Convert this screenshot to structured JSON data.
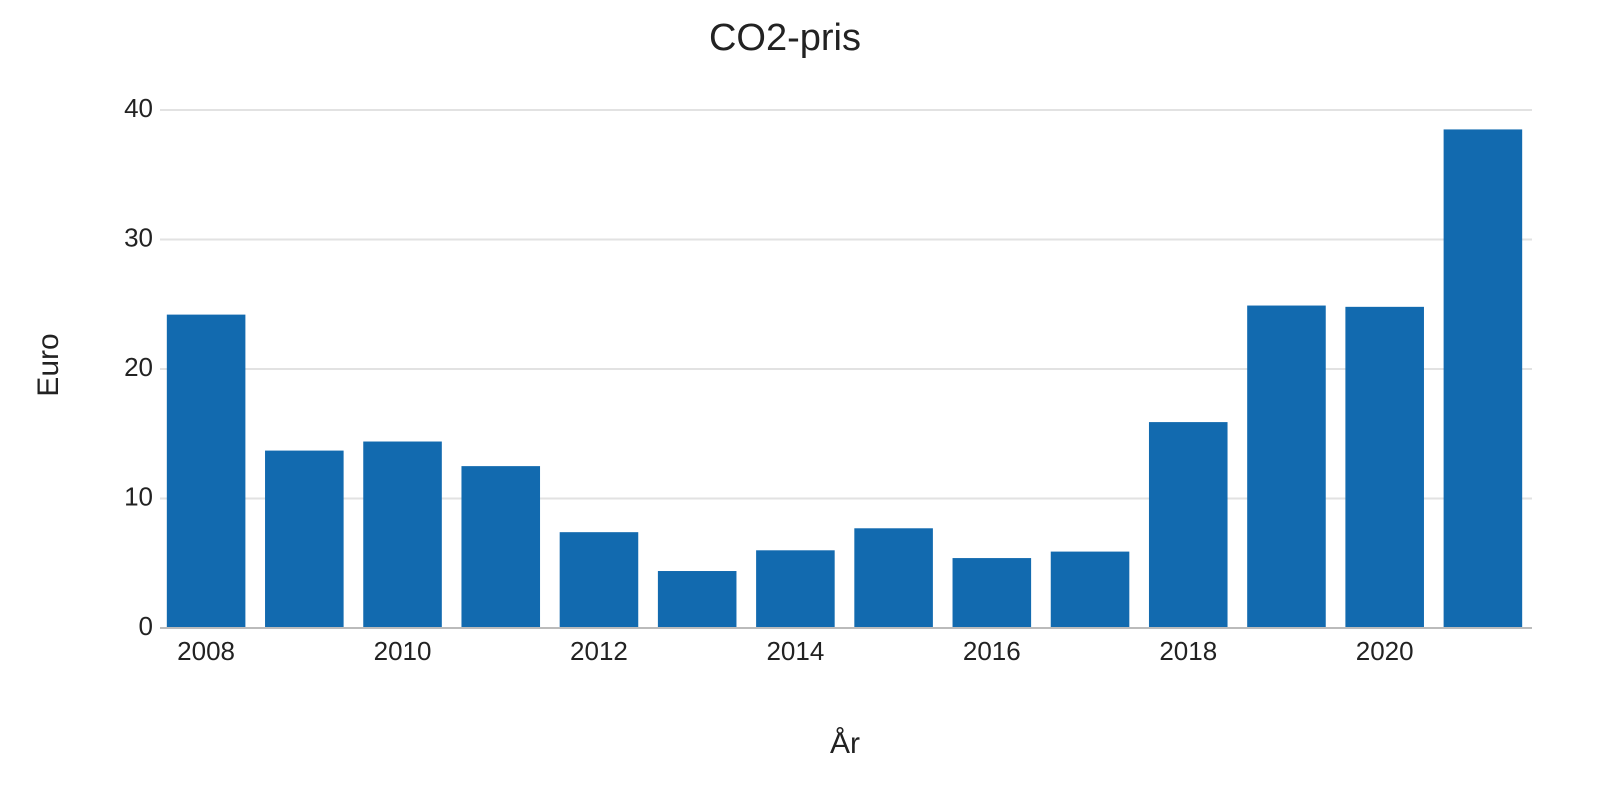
{
  "chart_data": {
    "type": "bar",
    "title": "CO2-pris",
    "x": [
      2008,
      2009,
      2010,
      2011,
      2012,
      2013,
      2014,
      2015,
      2016,
      2017,
      2018,
      2019,
      2020,
      2021
    ],
    "values": [
      24.2,
      13.7,
      14.4,
      12.5,
      7.4,
      4.4,
      6.0,
      7.7,
      5.4,
      5.9,
      15.9,
      24.9,
      24.8,
      38.5
    ],
    "color": "#126aaf",
    "xlim": [
      2007.5,
      2021.5
    ],
    "xticks": [
      2008,
      2010,
      2012,
      2014,
      2016,
      2018,
      2020
    ],
    "ylim": [
      0,
      40
    ],
    "yticks": [
      0,
      10,
      20,
      30,
      40
    ],
    "grid": true,
    "x_label": "År",
    "y_label": "Euro"
  }
}
